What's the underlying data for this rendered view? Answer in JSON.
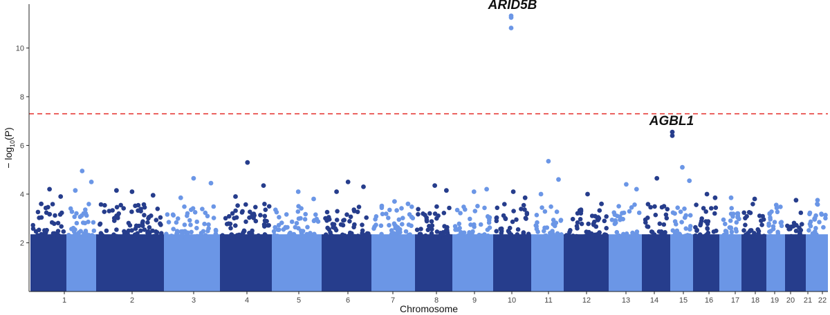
{
  "chart_data": {
    "type": "scatter",
    "title": "",
    "xlabel": "Chromosome",
    "ylabel": "−log10(P)",
    "ylabel_parts": {
      "prefix": "− log",
      "sub": "10",
      "body": "(P)"
    },
    "ylim": [
      0,
      11.8
    ],
    "yticks": [
      2,
      4,
      6,
      8,
      10
    ],
    "grid": false,
    "legend": "none",
    "significance_threshold": 7.3,
    "colors": {
      "dark": "#263d8c",
      "light": "#6b96e6",
      "threshold": "#e53935"
    },
    "chromosomes": [
      {
        "label": "1",
        "color": "dark"
      },
      {
        "label": "2",
        "color": "light"
      },
      {
        "label": "3",
        "color": "dark"
      },
      {
        "label": "4",
        "color": "light"
      },
      {
        "label": "5",
        "color": "dark"
      },
      {
        "label": "6",
        "color": "light"
      },
      {
        "label": "7",
        "color": "dark"
      },
      {
        "label": "8",
        "color": "light"
      },
      {
        "label": "9",
        "color": "dark"
      },
      {
        "label": "10",
        "color": "light"
      },
      {
        "label": "11",
        "color": "dark"
      },
      {
        "label": "12",
        "color": "light"
      },
      {
        "label": "13",
        "color": "dark"
      },
      {
        "label": "14",
        "color": "light"
      },
      {
        "label": "15",
        "color": "dark"
      },
      {
        "label": "16",
        "color": "light"
      },
      {
        "label": "17",
        "color": "dark"
      },
      {
        "label": "18",
        "color": "light"
      },
      {
        "label": "19",
        "color": "dark"
      },
      {
        "label": "20",
        "color": "light"
      },
      {
        "label": "21",
        "color": "dark"
      },
      {
        "label": "22",
        "color": "light"
      }
    ],
    "top_points": [
      {
        "chr": "1",
        "y": 4.2
      },
      {
        "chr": "1",
        "y": 3.9
      },
      {
        "chr": "1",
        "y": 3.6
      },
      {
        "chr": "2",
        "y": 4.95
      },
      {
        "chr": "2",
        "y": 4.5
      },
      {
        "chr": "2",
        "y": 4.15
      },
      {
        "chr": "3",
        "y": 4.1
      },
      {
        "chr": "3",
        "y": 3.95
      },
      {
        "chr": "3",
        "y": 4.15
      },
      {
        "chr": "4",
        "y": 4.65
      },
      {
        "chr": "4",
        "y": 4.45
      },
      {
        "chr": "4",
        "y": 3.85
      },
      {
        "chr": "5",
        "y": 5.3
      },
      {
        "chr": "5",
        "y": 4.35
      },
      {
        "chr": "5",
        "y": 3.9
      },
      {
        "chr": "6",
        "y": 4.1
      },
      {
        "chr": "6",
        "y": 3.8
      },
      {
        "chr": "7",
        "y": 4.5
      },
      {
        "chr": "7",
        "y": 4.3
      },
      {
        "chr": "7",
        "y": 4.1
      },
      {
        "chr": "8",
        "y": 3.7
      },
      {
        "chr": "8",
        "y": 3.6
      },
      {
        "chr": "9",
        "y": 4.35
      },
      {
        "chr": "9",
        "y": 4.15
      },
      {
        "chr": "10",
        "y": 11.32
      },
      {
        "chr": "10",
        "y": 11.25
      },
      {
        "chr": "10",
        "y": 10.82
      },
      {
        "chr": "10",
        "y": 4.1
      },
      {
        "chr": "10",
        "y": 4.2
      },
      {
        "chr": "11",
        "y": 4.1
      },
      {
        "chr": "11",
        "y": 3.85
      },
      {
        "chr": "12",
        "y": 5.35
      },
      {
        "chr": "12",
        "y": 4.6
      },
      {
        "chr": "12",
        "y": 4.0
      },
      {
        "chr": "13",
        "y": 4.0
      },
      {
        "chr": "13",
        "y": 3.6
      },
      {
        "chr": "14",
        "y": 4.4
      },
      {
        "chr": "14",
        "y": 4.2
      },
      {
        "chr": "15",
        "y": 6.55
      },
      {
        "chr": "15",
        "y": 6.4
      },
      {
        "chr": "15",
        "y": 4.65
      },
      {
        "chr": "16",
        "y": 5.1
      },
      {
        "chr": "16",
        "y": 4.55
      },
      {
        "chr": "17",
        "y": 4.0
      },
      {
        "chr": "17",
        "y": 3.85
      },
      {
        "chr": "18",
        "y": 3.85
      },
      {
        "chr": "19",
        "y": 3.8
      },
      {
        "chr": "20",
        "y": 3.55
      },
      {
        "chr": "21",
        "y": 3.75
      },
      {
        "chr": "22",
        "y": 3.75
      }
    ],
    "annotations": [
      {
        "text": "ARID5B",
        "chr": "10",
        "y": 11.32
      },
      {
        "text": "AGBL1",
        "chr": "15",
        "y": 6.55
      }
    ]
  }
}
